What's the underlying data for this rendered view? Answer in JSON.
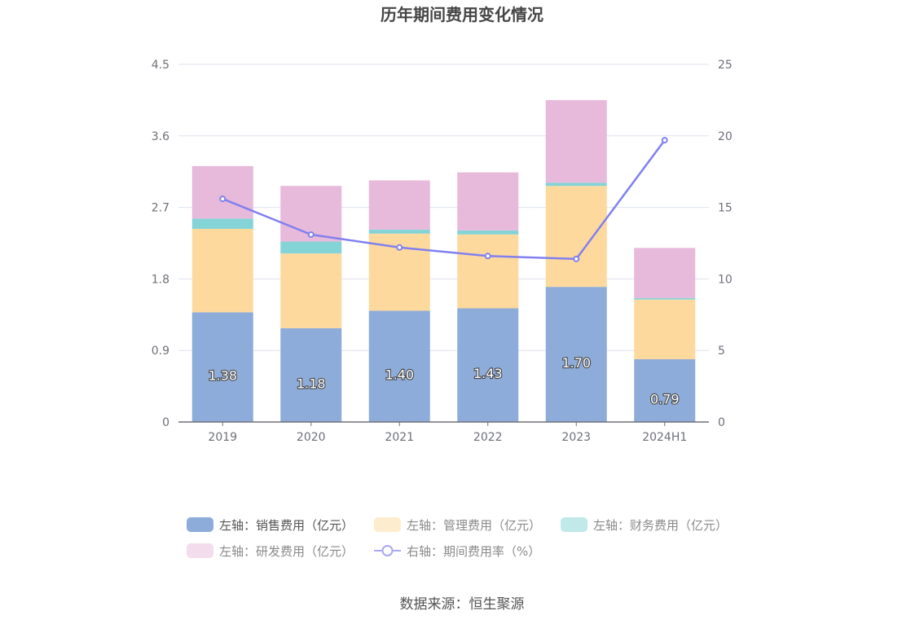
{
  "chart_data": {
    "type": "bar",
    "stacked": true,
    "title": "历年期间费用变化情况",
    "categories": [
      "2019",
      "2020",
      "2021",
      "2022",
      "2023",
      "2024H1"
    ],
    "left_axis": {
      "ticks": [
        "0",
        "0.9",
        "1.8",
        "2.7",
        "3.6",
        "4.5"
      ],
      "ylim": [
        0,
        4.5
      ]
    },
    "right_axis": {
      "ticks": [
        "0",
        "5",
        "10",
        "15",
        "20",
        "25"
      ],
      "ylim": [
        0,
        25
      ]
    },
    "series": [
      {
        "name": "左轴：销售费用（亿元）",
        "axis": "left",
        "color": "#8eacd9",
        "values": [
          1.38,
          1.18,
          1.4,
          1.43,
          1.7,
          0.79
        ],
        "labels": [
          "1.38",
          "1.18",
          "1.40",
          "1.43",
          "1.70",
          "0.79"
        ]
      },
      {
        "name": "左轴：管理费用（亿元）",
        "axis": "left",
        "color": "#fed99e",
        "values": [
          1.05,
          0.94,
          0.97,
          0.93,
          1.27,
          0.75
        ]
      },
      {
        "name": "左轴：财务费用（亿元）",
        "axis": "left",
        "color": "#84d3d6",
        "values": [
          0.13,
          0.15,
          0.05,
          0.05,
          0.04,
          0.02
        ]
      },
      {
        "name": "左轴：研发费用（亿元）",
        "axis": "left",
        "color": "#e7b9da",
        "values": [
          0.66,
          0.7,
          0.62,
          0.73,
          1.04,
          0.63
        ]
      },
      {
        "name": "右轴：期间费用率（%）",
        "axis": "right",
        "type": "line",
        "color": "#8080ef",
        "values": [
          15.6,
          13.1,
          12.2,
          11.6,
          11.4,
          19.7
        ]
      }
    ],
    "legend_position": "bottom"
  },
  "source": "数据来源：恒生聚源"
}
